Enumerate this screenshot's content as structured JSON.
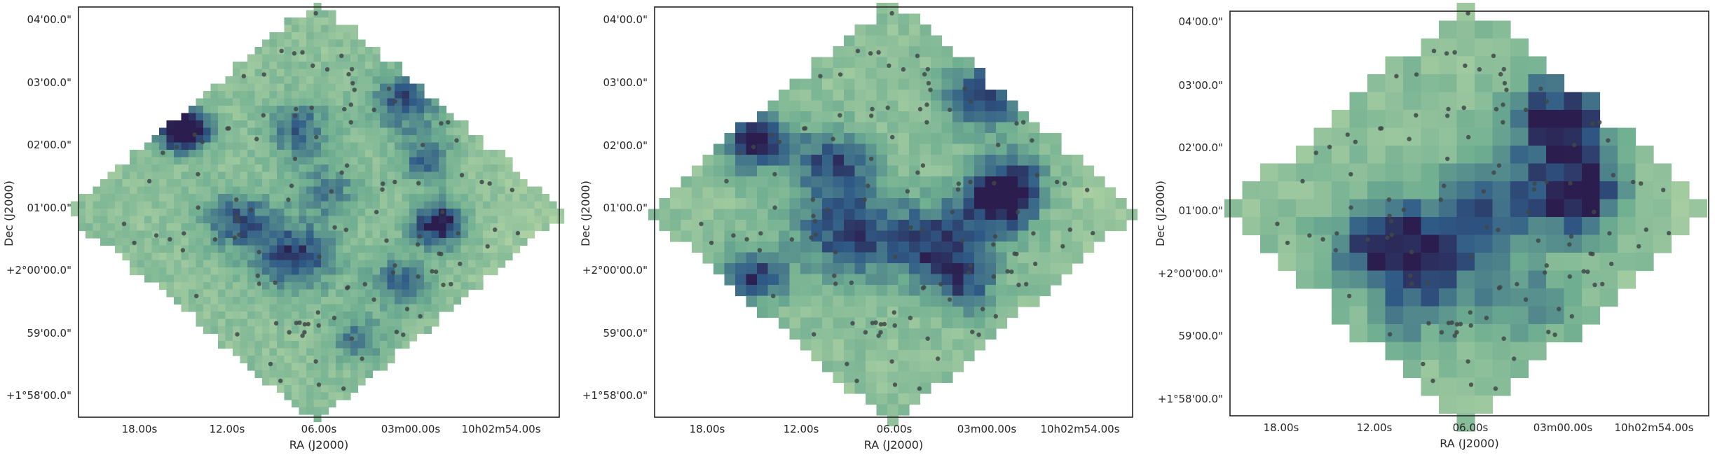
{
  "chart_data": [
    {
      "type": "heatmap",
      "title": "",
      "xlabel": "RA (J2000)",
      "ylabel": "Dec (J2000)",
      "x_tick_labels": [
        "18.00s",
        "12.00s",
        "06.00s",
        "03m00.00s",
        "10h02m54.00s"
      ],
      "y_tick_labels": [
        "04'00.0\"",
        "03'00.0\"",
        "02'00.0\"",
        "01'00.0\"",
        "+2°00'00.0\"",
        "59'00.0\"",
        "+1°58'00.0\""
      ],
      "grid": false,
      "colormap": "crest",
      "overlay": "scattered point sources (dark grey dots)",
      "pixel_resolution": "fine"
    },
    {
      "type": "heatmap",
      "title": "",
      "xlabel": "RA (J2000)",
      "ylabel": "Dec (J2000)",
      "x_tick_labels": [
        "18.00s",
        "12.00s",
        "06.00s",
        "03m00.00s",
        "10h02m54.00s"
      ],
      "y_tick_labels": [
        "04'00.0\"",
        "03'00.0\"",
        "02'00.0\"",
        "01'00.0\"",
        "+2°00'00.0\"",
        "59'00.0\"",
        "+1°58'00.0\""
      ],
      "grid": false,
      "colormap": "crest",
      "overlay": "scattered point sources (dark grey dots)",
      "pixel_resolution": "medium"
    },
    {
      "type": "heatmap",
      "title": "",
      "xlabel": "RA (J2000)",
      "ylabel": "Dec (J2000)",
      "x_tick_labels": [
        "18.00s",
        "12.00s",
        "06.00s",
        "03m00.00s",
        "10h02m54.00s"
      ],
      "y_tick_labels": [
        "04'00.0\"",
        "03'00.0\"",
        "02'00.0\"",
        "01'00.0\"",
        "+2°00'00.0\"",
        "59'00.0\"",
        "+1°58'00.0\""
      ],
      "grid": false,
      "colormap": "crest",
      "overlay": "scattered point sources (dark grey dots)",
      "pixel_resolution": "coarse"
    }
  ],
  "colors": {
    "map_light": "#c4deaa",
    "map_mid": "#6fae91",
    "map_dark": "#2f5a86",
    "map_darkest": "#2b1e4e",
    "source_dot": "#404848",
    "frame": "#222222",
    "text": "#262626"
  }
}
